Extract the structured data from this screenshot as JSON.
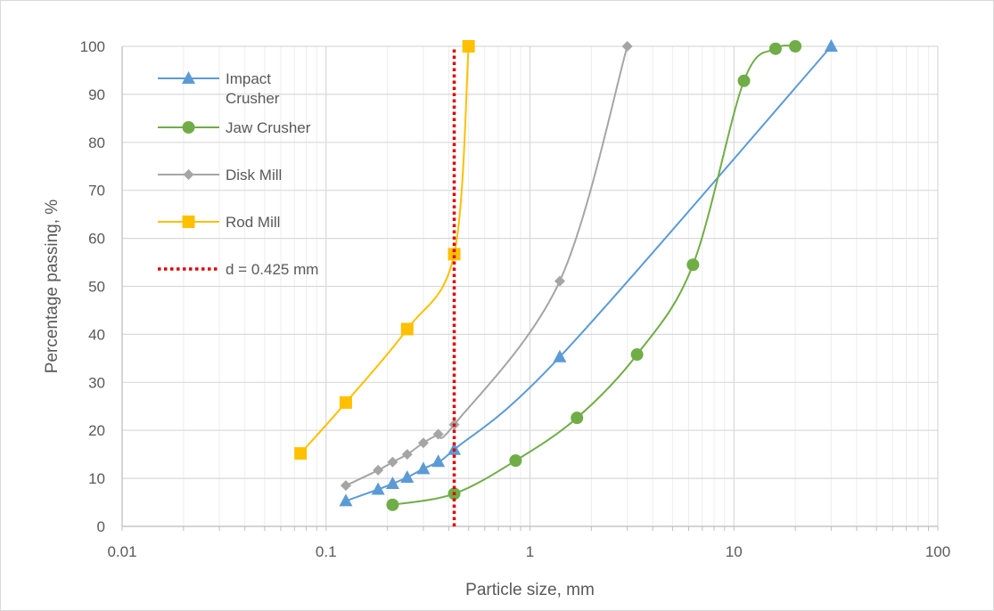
{
  "chart_data": {
    "type": "line",
    "title": "",
    "xlabel": "Particle size, mm",
    "ylabel": "Percentage passing, %",
    "x_scale": "log",
    "xlim": [
      0.01,
      100
    ],
    "ylim": [
      0,
      100
    ],
    "x_ticks": [
      "0.01",
      "0.1",
      "1",
      "10",
      "100"
    ],
    "y_ticks": [
      "0",
      "10",
      "20",
      "30",
      "40",
      "50",
      "60",
      "70",
      "80",
      "90",
      "100"
    ],
    "grid": true,
    "legend_position": "top-left",
    "series": [
      {
        "name": "Impact Crusher",
        "color": "#5b9bd5",
        "marker": "triangle",
        "x": [
          0.125,
          0.18,
          0.212,
          0.25,
          0.3,
          0.355,
          0.425,
          1.4,
          30
        ],
        "y": [
          5.3,
          7.7,
          8.9,
          10.2,
          12,
          13.5,
          16,
          35.3,
          100
        ]
      },
      {
        "name": "Jaw Crusher",
        "color": "#70ad47",
        "marker": "circle",
        "x": [
          0.212,
          0.425,
          0.85,
          1.7,
          3.35,
          6.3,
          11.2,
          16,
          20
        ],
        "y": [
          4.5,
          6.8,
          13.7,
          22.6,
          35.8,
          54.5,
          92.8,
          99.5,
          100
        ]
      },
      {
        "name": "Disk Mill",
        "color": "#a5a5a5",
        "marker": "diamond",
        "x": [
          0.125,
          0.18,
          0.212,
          0.25,
          0.3,
          0.355,
          0.425,
          1.4,
          3
        ],
        "y": [
          8.5,
          11.7,
          13.4,
          15,
          17.4,
          19.2,
          21.2,
          51.1,
          100
        ]
      },
      {
        "name": "Rod Mill",
        "color": "#ffc000",
        "marker": "square",
        "x": [
          0.075,
          0.125,
          0.25,
          0.425,
          0.5
        ],
        "y": [
          15.2,
          25.8,
          41.1,
          56.7,
          100
        ]
      },
      {
        "name": "d = 0.425 mm",
        "color": "#e00000",
        "style": "dotted",
        "x": [
          0.425,
          0.425
        ],
        "y": [
          0,
          100
        ]
      }
    ]
  }
}
